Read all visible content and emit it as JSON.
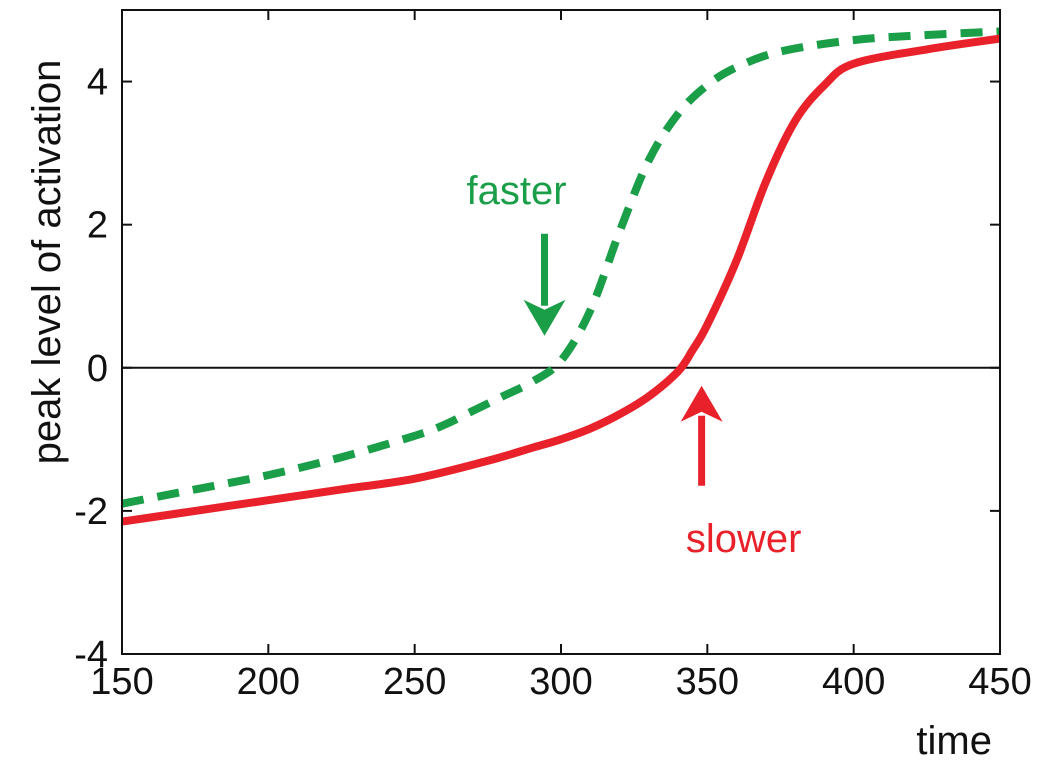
{
  "chart_data": {
    "type": "line",
    "title": "",
    "xlabel": "time",
    "ylabel": "peak level of activation",
    "xlim": [
      150,
      450
    ],
    "ylim": [
      -4,
      5
    ],
    "xticks": [
      150,
      200,
      250,
      300,
      350,
      400,
      450
    ],
    "yticks": [
      -4,
      -2,
      0,
      2,
      4
    ],
    "xtick_labels": [
      "150",
      "200",
      "250",
      "300",
      "350",
      "400",
      "450"
    ],
    "ytick_labels": [
      "-4",
      "-2",
      "0",
      "2",
      "4"
    ],
    "grid": false,
    "reference_line": {
      "y": 0
    },
    "series": [
      {
        "color": "#1a9e48",
        "line_style": "dashed",
        "x": [
          150,
          175,
          200,
          225,
          250,
          260,
          270,
          280,
          290,
          300,
          310,
          320,
          330,
          340,
          350,
          360,
          375,
          400,
          425,
          450
        ],
        "y": [
          -1.9,
          -1.7,
          -1.5,
          -1.25,
          -0.95,
          -0.8,
          -0.6,
          -0.4,
          -0.2,
          0.1,
          0.8,
          1.9,
          2.9,
          3.55,
          3.95,
          4.2,
          4.42,
          4.58,
          4.65,
          4.7
        ]
      },
      {
        "color": "#e8212a",
        "line_style": "solid",
        "x": [
          150,
          175,
          200,
          225,
          250,
          275,
          290,
          300,
          310,
          320,
          330,
          340,
          345,
          350,
          360,
          370,
          380,
          390,
          400,
          425,
          450
        ],
        "y": [
          -2.15,
          -2.0,
          -1.85,
          -1.7,
          -1.55,
          -1.3,
          -1.12,
          -1.0,
          -0.85,
          -0.65,
          -0.4,
          -0.05,
          0.25,
          0.6,
          1.5,
          2.6,
          3.45,
          3.95,
          4.25,
          4.45,
          4.6
        ]
      }
    ],
    "annotations": [
      {
        "text": "faster",
        "color": "#1a9e48",
        "arrow_direction": "down",
        "points_to": {
          "x": 293,
          "y": 0
        }
      },
      {
        "text": "slower",
        "color": "#e8212a",
        "arrow_direction": "up",
        "points_to": {
          "x": 346,
          "y": 0
        }
      }
    ]
  }
}
